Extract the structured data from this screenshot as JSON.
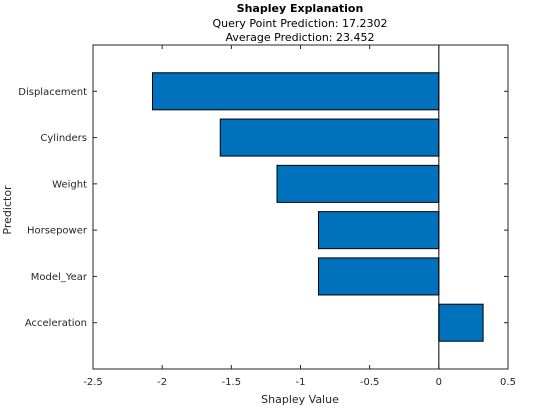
{
  "chart_data": {
    "type": "bar",
    "orientation": "horizontal",
    "title": "Shapley Explanation",
    "subtitles": [
      "Query Point Prediction: 17.2302",
      "Average Prediction: 23.452"
    ],
    "xlabel": "Shapley Value",
    "ylabel": "Predictor",
    "categories": [
      "Displacement",
      "Cylinders",
      "Weight",
      "Horsepower",
      "Model_Year",
      "Acceleration"
    ],
    "values": [
      -2.07,
      -1.58,
      -1.17,
      -0.87,
      -0.87,
      0.32
    ],
    "xlim": [
      -2.5,
      0.5
    ],
    "xticks": [
      -2.5,
      -2,
      -1.5,
      -1,
      -0.5,
      0,
      0.5
    ],
    "xtick_labels": [
      "-2.5",
      "-2",
      "-1.5",
      "-1",
      "-0.5",
      "0",
      "0.5"
    ],
    "bar_color": "#0072BD",
    "grid": false,
    "legend": false
  }
}
